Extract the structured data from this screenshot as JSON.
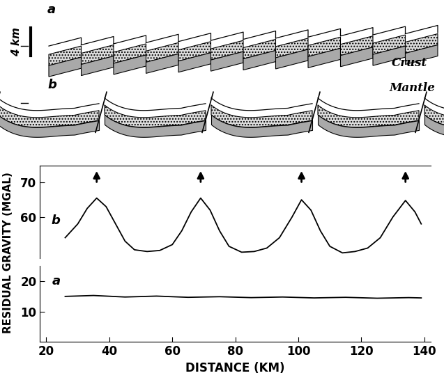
{
  "diagram": {
    "panels": [
      "a",
      "b"
    ],
    "layer_labels": [
      "Crust",
      "Mantle"
    ],
    "scale_bar": "4 km"
  },
  "chart_data": [
    {
      "type": "line",
      "x": [
        26,
        30,
        33,
        36,
        39,
        42,
        45,
        48,
        52,
        56,
        60,
        63,
        66,
        69,
        72,
        75,
        78,
        82,
        86,
        90,
        94,
        98,
        101,
        104,
        107,
        110,
        114,
        118,
        122,
        126,
        130,
        134,
        137,
        139
      ],
      "series": [
        {
          "name": "b",
          "color": "#000000",
          "values": [
            54,
            58,
            62.5,
            65.5,
            63,
            58,
            53,
            50.5,
            50,
            50.3,
            52,
            56,
            61.5,
            65.5,
            62,
            56,
            51.5,
            49.8,
            50,
            51,
            54,
            60,
            65,
            62,
            56,
            51.5,
            49.6,
            50,
            51,
            54,
            60,
            64.8,
            61.5,
            58
          ]
        }
      ],
      "arrows_x": [
        36,
        69,
        101,
        134
      ],
      "xlim": [
        18,
        142
      ],
      "ylim": [
        48,
        75
      ],
      "yticks": [
        60,
        70
      ],
      "tick_labels": "y"
    },
    {
      "type": "line",
      "x": [
        26,
        35,
        45,
        55,
        65,
        75,
        85,
        95,
        105,
        115,
        125,
        135,
        139
      ],
      "series": [
        {
          "name": "a",
          "color": "#000000",
          "values": [
            15,
            15.3,
            14.8,
            15.1,
            14.7,
            14.9,
            14.6,
            14.8,
            14.5,
            14.7,
            14.4,
            14.6,
            14.5
          ]
        }
      ],
      "xlim": [
        18,
        142
      ],
      "xticks": [
        20,
        40,
        60,
        80,
        100,
        120,
        140
      ],
      "ylim": [
        0,
        25
      ],
      "yticks": [
        10,
        20
      ],
      "x_label": "DISTANCE (KM)",
      "y_label": "RESIDUAL GRAVITY (MGAL)"
    }
  ]
}
